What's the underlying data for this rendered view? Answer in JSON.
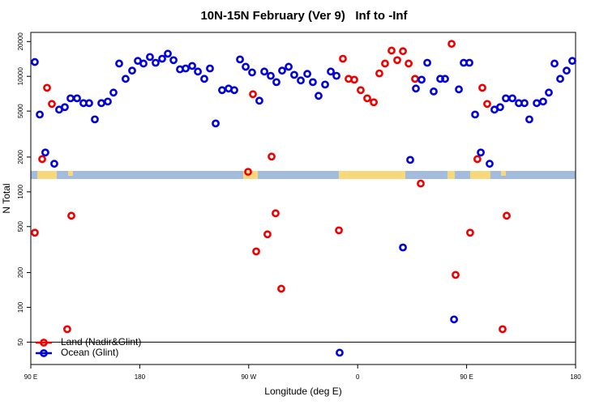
{
  "chart_data": {
    "type": "scatter",
    "title": "10N-15N February (Ver 9)   Inf to -Inf",
    "x_label": "Longitude (deg E)",
    "y_label": "N Total",
    "log_y": true,
    "hline": 50,
    "legend": "bottom-left",
    "xlim": [
      90,
      540
    ],
    "xticks": [
      {
        "value": 90,
        "label": "90 E"
      },
      180,
      {
        "value": 270,
        "label": "90 W"
      },
      {
        "value": 360,
        "label": "0"
      },
      {
        "value": 450,
        "label": "90 E"
      },
      {
        "value": 540,
        "label": "180"
      }
    ],
    "ylim": [
      32,
      24000
    ],
    "yticks": [
      50,
      100,
      200,
      500,
      1000,
      2000,
      5000,
      10000,
      20000
    ],
    "series": [
      {
        "name": "Land (Nadir&Glint)",
        "color": "#ee0000",
        "x": [
          93.3,
          99.4,
          103.4,
          107.4,
          120.1,
          123.5,
          269.5,
          273.5,
          276.2,
          285.5,
          288.9,
          292.2,
          296.9,
          344.5,
          347.8,
          352.5,
          357.2,
          362.5,
          367.9,
          373.3,
          377.9,
          382.6,
          388,
          392.7,
          397.4,
          402.1,
          407.4,
          412.1,
          437.6,
          440.9,
          452.9,
          458.9,
          463,
          467,
          479.7,
          483.1
        ],
        "values": [
          443,
          1920,
          7960,
          5770,
          64.7,
          621,
          1490,
          7000,
          305,
          429,
          2020,
          652,
          145,
          464,
          14200,
          9510,
          9350,
          7590,
          6450,
          5960,
          10600,
          12900,
          16700,
          13800,
          16500,
          12900,
          9510,
          1180,
          19100,
          191,
          443,
          1920,
          7960,
          5770,
          64.7,
          621
        ]
      },
      {
        "name": "Ocean (Glint)",
        "color": "#0000dd",
        "x": [
          93.3,
          97.4,
          102,
          109.4,
          113.4,
          118.1,
          122.8,
          128.2,
          133.5,
          138.2,
          142.9,
          148.3,
          153.6,
          158.3,
          163,
          168.3,
          173.7,
          178.4,
          183.1,
          188.4,
          193.1,
          198.5,
          203.2,
          207.9,
          213.2,
          217.9,
          223.3,
          228,
          233.3,
          238,
          242.7,
          248,
          253.4,
          258.1,
          262.8,
          267.5,
          272.8,
          278.8,
          282.9,
          288.2,
          292.9,
          297.6,
          303,
          307.6,
          313,
          318.4,
          323,
          327.7,
          333.1,
          337.8,
          342.5,
          345.1,
          397.4,
          403.4,
          408.1,
          412.8,
          417.5,
          422.8,
          428.2,
          432.2,
          439.6,
          443.6,
          447.6,
          452.3,
          457,
          461.7,
          469,
          473,
          477.7,
          482.4,
          487.8,
          493.1,
          497.8,
          501.8,
          507.9,
          513.2,
          517.9,
          522.6,
          527.3,
          532.6,
          537.3
        ],
        "values": [
          13300,
          4670,
          2190,
          1750,
          5150,
          5410,
          6450,
          6450,
          5860,
          5860,
          4240,
          5860,
          6050,
          7230,
          12900,
          9510,
          11200,
          13600,
          12900,
          14700,
          13100,
          14200,
          15700,
          13800,
          11500,
          11700,
          12300,
          11000,
          9510,
          11700,
          3910,
          7590,
          7840,
          7590,
          14000,
          12100,
          10800,
          6150,
          11000,
          10100,
          8910,
          11200,
          12100,
          10300,
          9210,
          10500,
          8910,
          6780,
          8490,
          11000,
          10100,
          40.5,
          330,
          1890,
          7840,
          9350,
          13100,
          7400,
          9510,
          9510,
          78.6,
          7710,
          13100,
          13100,
          4670,
          2190,
          1750,
          5150,
          5410,
          6450,
          6450,
          5860,
          5860,
          4240,
          5860,
          6050,
          7230,
          12900,
          9510,
          11200,
          13600
        ]
      }
    ]
  }
}
